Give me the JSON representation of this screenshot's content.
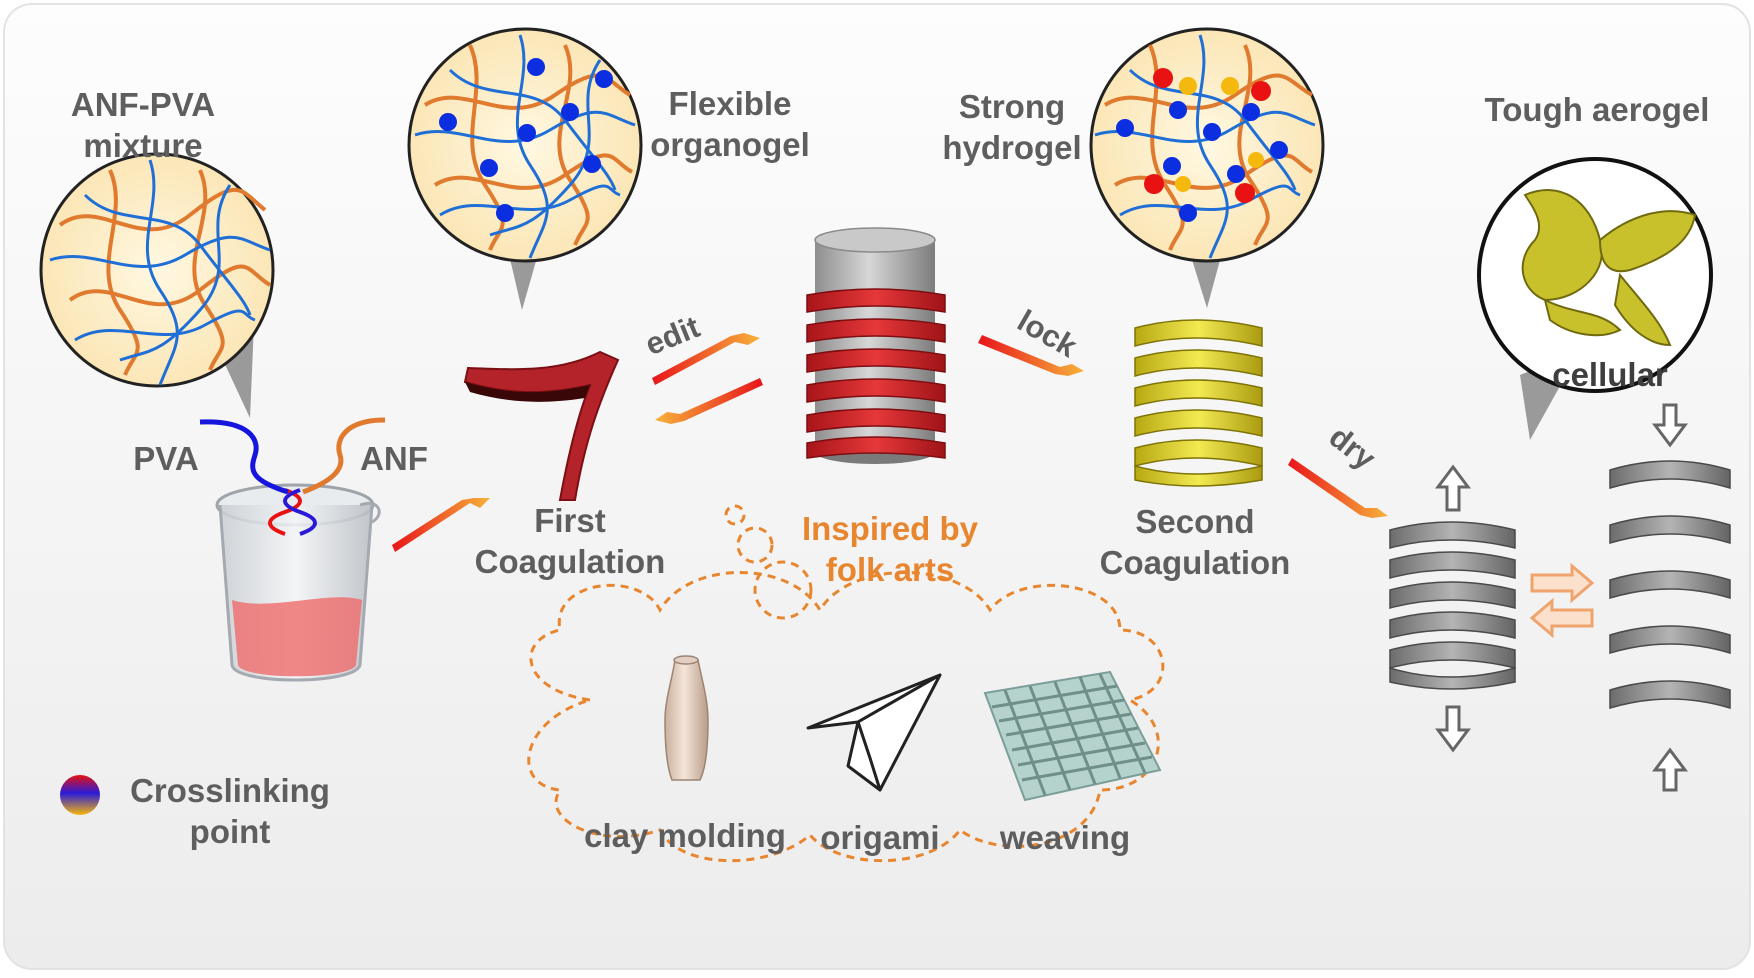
{
  "labels": {
    "mixture_line1": "ANF-PVA",
    "mixture_line2": "mixture",
    "pva": "PVA",
    "anf": "ANF",
    "organogel_line1": "Flexible",
    "organogel_line2": "organogel",
    "first_line1": "First",
    "first_line2": "Coagulation",
    "edit": "edit",
    "lock": "lock",
    "hydrogel_line1": "Strong",
    "hydrogel_line2": "hydrogel",
    "second_line1": "Second",
    "second_line2": "Coagulation",
    "dry": "dry",
    "aerogel": "Tough aerogel",
    "cellular": "cellular",
    "inspired_line1": "Inspired by",
    "inspired_line2": "folk arts",
    "clay": "clay molding",
    "origami": "origami",
    "weaving": "weaving",
    "crosslink_line1": "Crosslinking",
    "crosslink_line2": "point"
  },
  "colors": {
    "text_gray": "#5e5e5e",
    "accent_orange": "#e8862f",
    "pva_blue": "#1f6fd6",
    "anf_orange": "#e07a2e",
    "crosslink_blue": "#0a2ee0",
    "crosslink_red": "#e81212",
    "crosslink_yellow": "#f5b80c",
    "ribbon_red": "#c8282b",
    "spring_yellow": "#e2d62a",
    "aerogel_gray": "#8c8c8c"
  },
  "icons": [
    "beaker-icon",
    "ribbon-icon",
    "wrapped-cylinder-icon",
    "yellow-spring-icon",
    "gray-spring-icon",
    "vase-icon",
    "paper-plane-icon",
    "woven-mat-icon"
  ]
}
